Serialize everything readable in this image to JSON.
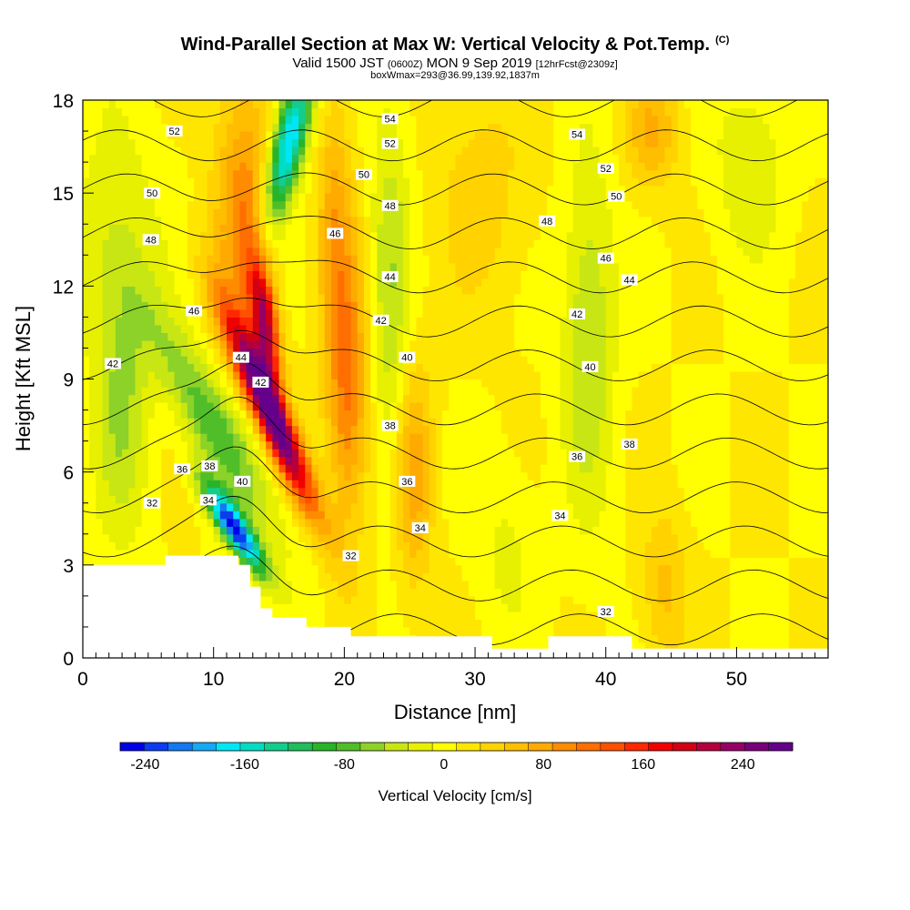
{
  "header": {
    "title": "Wind-Parallel Section at Max W: Vertical Velocity & Pot.Temp.",
    "copyright": "(C)",
    "valid_prefix": "Valid 1500 JST",
    "valid_utc": "(0600Z)",
    "valid_date": "MON 9 Sep 2019",
    "forecast": "[12hrFcst@2309z]",
    "box_info": "boxWmax=293@36.99,139.92,1837m"
  },
  "chart_data": {
    "type": "heatmap",
    "xlabel": "Distance [nm]",
    "ylabel": "Height [Kft MSL]",
    "xlim": [
      0,
      57
    ],
    "ylim": [
      0,
      18
    ],
    "xticks": [
      0,
      10,
      20,
      30,
      40,
      50
    ],
    "yticks": [
      0,
      3,
      6,
      9,
      12,
      15,
      18
    ],
    "colorbar": {
      "label": "Vertical Velocity [cm/s]",
      "range": [
        -260,
        280
      ],
      "ticks": [
        -240,
        -160,
        -80,
        0,
        80,
        160,
        240
      ],
      "colors": [
        "#0000e6",
        "#0a3cf0",
        "#1478f0",
        "#14a8f5",
        "#00e6f5",
        "#00dcc3",
        "#14cd8c",
        "#1ebe5a",
        "#28b428",
        "#50be28",
        "#8cd228",
        "#c8e614",
        "#e6f000",
        "#ffff00",
        "#ffe600",
        "#ffd200",
        "#ffbe00",
        "#ffaa00",
        "#ff8c00",
        "#ff6e00",
        "#ff5000",
        "#ff2800",
        "#f00000",
        "#d20014",
        "#b4003c",
        "#960064",
        "#780078",
        "#64008c"
      ]
    },
    "terrain_kft": [
      [
        0,
        3.0
      ],
      [
        6.3,
        3.0
      ],
      [
        6.3,
        3.3
      ],
      [
        11.9,
        3.3
      ],
      [
        11.9,
        3.0
      ],
      [
        12.8,
        3.0
      ],
      [
        12.8,
        2.3
      ],
      [
        13.6,
        2.3
      ],
      [
        13.6,
        1.6
      ],
      [
        14.5,
        1.6
      ],
      [
        14.5,
        1.3
      ],
      [
        17.1,
        1.3
      ],
      [
        17.1,
        1.0
      ],
      [
        20.5,
        1.0
      ],
      [
        20.5,
        0.7
      ],
      [
        31.3,
        0.7
      ],
      [
        31.3,
        0.3
      ],
      [
        35.6,
        0.3
      ],
      [
        35.6,
        0.7
      ],
      [
        42.0,
        0.7
      ],
      [
        42.0,
        0.3
      ],
      [
        57,
        0.3
      ]
    ],
    "w_features": [
      {
        "x": 14.3,
        "y": 8.0,
        "sx": 0.9,
        "sy": 2.2,
        "tilt": -1.0,
        "value": 285
      },
      {
        "x": 13.9,
        "y": 10.8,
        "sx": 0.7,
        "sy": 1.5,
        "tilt": -0.3,
        "value": 200
      },
      {
        "x": 11.6,
        "y": 4.2,
        "sx": 0.8,
        "sy": 1.0,
        "tilt": -1.4,
        "value": -250
      },
      {
        "x": 15.8,
        "y": 16.7,
        "sx": 0.9,
        "sy": 1.8,
        "tilt": 0.5,
        "value": -200
      },
      {
        "x": 10.0,
        "y": 7.5,
        "sx": 1.6,
        "sy": 2.5,
        "tilt": -1.2,
        "value": -90
      },
      {
        "x": 12.3,
        "y": 14.5,
        "sx": 1.5,
        "sy": 3.0,
        "tilt": 0,
        "value": 90
      },
      {
        "x": 20.3,
        "y": 8.8,
        "sx": 1.1,
        "sy": 3.2,
        "tilt": 0,
        "value": 100
      },
      {
        "x": 19.2,
        "y": 14.0,
        "sx": 0.9,
        "sy": 3.0,
        "tilt": 0,
        "value": 60
      },
      {
        "x": 23.5,
        "y": 12.0,
        "sx": 1.1,
        "sy": 4.5,
        "tilt": 0,
        "value": -55
      },
      {
        "x": 25.3,
        "y": 6.0,
        "sx": 1.0,
        "sy": 2.5,
        "tilt": 0,
        "value": 70
      },
      {
        "x": 38.7,
        "y": 10.5,
        "sx": 1.4,
        "sy": 4.0,
        "tilt": 0,
        "value": -60
      },
      {
        "x": 43.5,
        "y": 17.0,
        "sx": 1.4,
        "sy": 1.3,
        "tilt": 0,
        "value": 60
      },
      {
        "x": 51.0,
        "y": 16.0,
        "sx": 2.0,
        "sy": 2.2,
        "tilt": 0,
        "value": -35
      },
      {
        "x": 30.5,
        "y": 15.0,
        "sx": 2.5,
        "sy": 2.5,
        "tilt": 0,
        "value": 30
      },
      {
        "x": 2.5,
        "y": 13.5,
        "sx": 2.5,
        "sy": 3.0,
        "tilt": 0,
        "value": -35
      },
      {
        "x": 3.0,
        "y": 8.0,
        "sx": 1.5,
        "sy": 3.0,
        "tilt": 0,
        "value": -55
      },
      {
        "x": 44.5,
        "y": 2.3,
        "sx": 1.2,
        "sy": 1.6,
        "tilt": 0,
        "value": 45
      },
      {
        "x": 32.5,
        "y": 3.5,
        "sx": 1.5,
        "sy": 2.0,
        "tilt": 0,
        "value": -25
      }
    ],
    "theta_contour_labels": [
      {
        "text": "52",
        "x": 7.0,
        "y": 17.0
      },
      {
        "text": "54",
        "x": 23.5,
        "y": 17.4
      },
      {
        "text": "52",
        "x": 23.5,
        "y": 16.6
      },
      {
        "text": "54",
        "x": 37.8,
        "y": 16.9
      },
      {
        "text": "52",
        "x": 40.0,
        "y": 15.8
      },
      {
        "text": "50",
        "x": 5.3,
        "y": 15.0
      },
      {
        "text": "50",
        "x": 21.5,
        "y": 15.6
      },
      {
        "text": "48",
        "x": 23.5,
        "y": 14.6
      },
      {
        "text": "50",
        "x": 40.8,
        "y": 14.9
      },
      {
        "text": "48",
        "x": 35.5,
        "y": 14.1
      },
      {
        "text": "48",
        "x": 5.2,
        "y": 13.5
      },
      {
        "text": "46",
        "x": 19.3,
        "y": 13.7
      },
      {
        "text": "46",
        "x": 40.0,
        "y": 12.9
      },
      {
        "text": "44",
        "x": 23.5,
        "y": 12.3
      },
      {
        "text": "44",
        "x": 41.8,
        "y": 12.2
      },
      {
        "text": "46",
        "x": 8.5,
        "y": 11.2
      },
      {
        "text": "42",
        "x": 22.8,
        "y": 10.9
      },
      {
        "text": "42",
        "x": 37.8,
        "y": 11.1
      },
      {
        "text": "44",
        "x": 12.1,
        "y": 9.7
      },
      {
        "text": "42",
        "x": 13.6,
        "y": 8.9
      },
      {
        "text": "40",
        "x": 24.8,
        "y": 9.7
      },
      {
        "text": "40",
        "x": 38.8,
        "y": 9.4
      },
      {
        "text": "42",
        "x": 2.3,
        "y": 9.5
      },
      {
        "text": "38",
        "x": 23.5,
        "y": 7.5
      },
      {
        "text": "38",
        "x": 41.8,
        "y": 6.9
      },
      {
        "text": "36",
        "x": 37.8,
        "y": 6.5
      },
      {
        "text": "38",
        "x": 9.7,
        "y": 6.2
      },
      {
        "text": "36",
        "x": 7.6,
        "y": 6.1
      },
      {
        "text": "40",
        "x": 12.2,
        "y": 5.7
      },
      {
        "text": "36",
        "x": 24.8,
        "y": 5.7
      },
      {
        "text": "34",
        "x": 9.6,
        "y": 5.1
      },
      {
        "text": "32",
        "x": 5.3,
        "y": 5.0
      },
      {
        "text": "34",
        "x": 36.5,
        "y": 4.6
      },
      {
        "text": "34",
        "x": 25.8,
        "y": 4.2
      },
      {
        "text": "32",
        "x": 20.5,
        "y": 3.3
      },
      {
        "text": "32",
        "x": 40.0,
        "y": 1.5
      }
    ]
  }
}
